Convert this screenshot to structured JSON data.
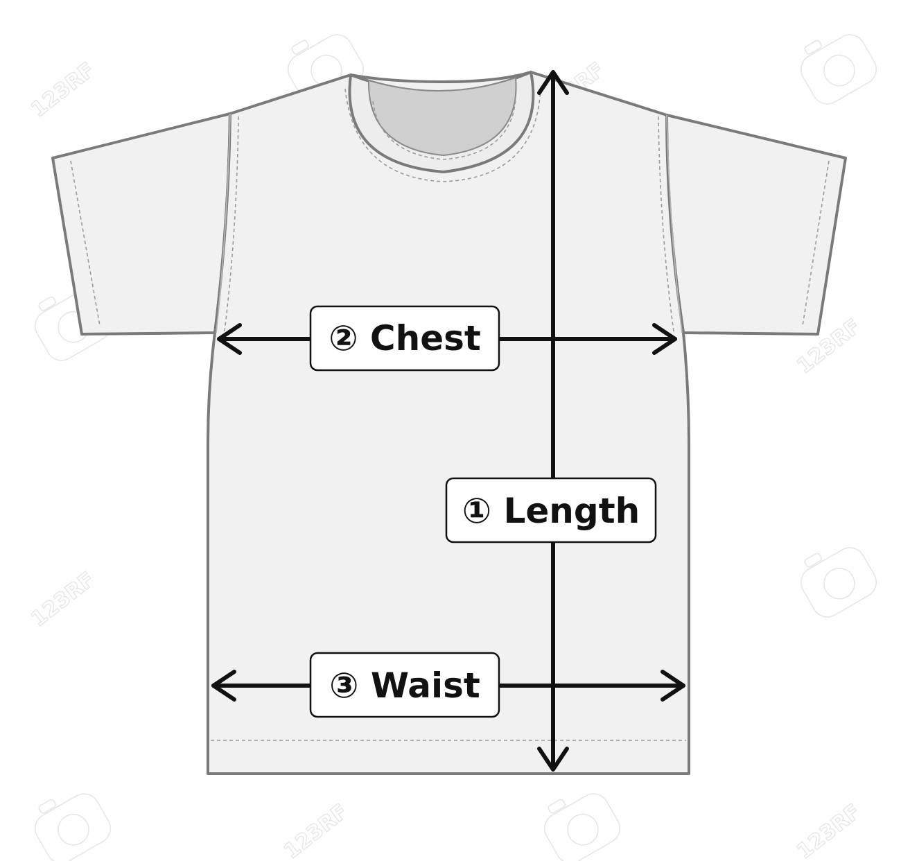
{
  "colors": {
    "garment_fill": "#f1f1f1",
    "garment_outline": "#7a7a7a",
    "inner_collar": "#d0d0d0",
    "arrow": "#111111",
    "label_background": "#ffffff"
  },
  "measurements": [
    {
      "id": "length",
      "label": "① Length",
      "direction": "vertical"
    },
    {
      "id": "chest",
      "label": "② Chest",
      "direction": "horizontal"
    },
    {
      "id": "waist",
      "label": "③ Waist",
      "direction": "horizontal"
    }
  ],
  "watermark": {
    "text": "123RF"
  }
}
